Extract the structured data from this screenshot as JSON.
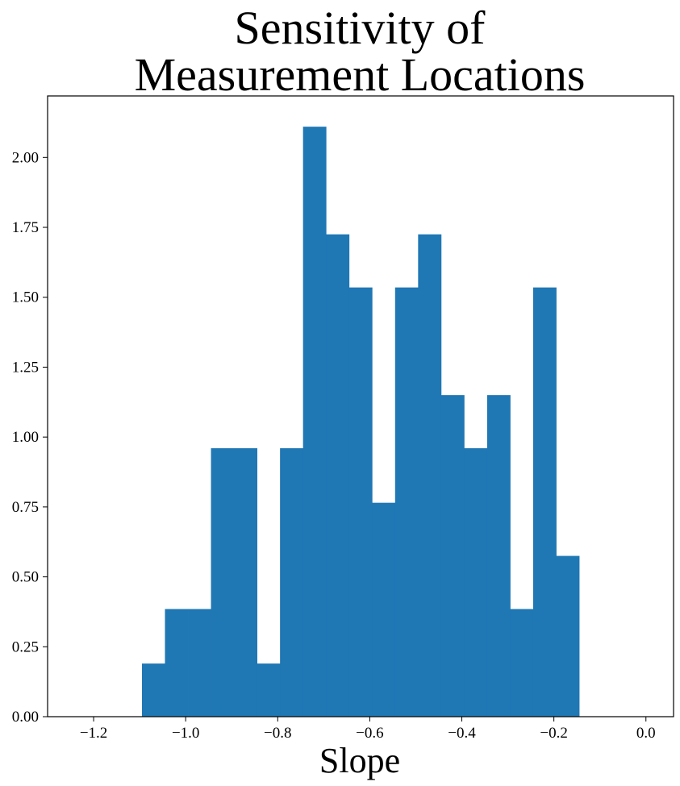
{
  "chart_data": {
    "type": "bar",
    "title_lines": [
      "Sensitivity of",
      "Measurement Locations"
    ],
    "xlabel": "Slope",
    "ylabel": "",
    "bar_color": "#1f77b4",
    "xlim": [
      -1.3,
      0.06
    ],
    "ylim": [
      0,
      2.22
    ],
    "bins": [
      {
        "x0": -1.095,
        "x1": -1.045,
        "value": 0.19
      },
      {
        "x0": -1.045,
        "x1": -0.995,
        "value": 0.385
      },
      {
        "x0": -0.995,
        "x1": -0.945,
        "value": 0.385
      },
      {
        "x0": -0.945,
        "x1": -0.895,
        "value": 0.96
      },
      {
        "x0": -0.895,
        "x1": -0.845,
        "value": 0.96
      },
      {
        "x0": -0.845,
        "x1": -0.795,
        "value": 0.19
      },
      {
        "x0": -0.795,
        "x1": -0.745,
        "value": 0.96
      },
      {
        "x0": -0.745,
        "x1": -0.695,
        "value": 2.11
      },
      {
        "x0": -0.695,
        "x1": -0.645,
        "value": 1.725
      },
      {
        "x0": -0.645,
        "x1": -0.595,
        "value": 1.535
      },
      {
        "x0": -0.595,
        "x1": -0.545,
        "value": 0.765
      },
      {
        "x0": -0.545,
        "x1": -0.495,
        "value": 1.535
      },
      {
        "x0": -0.495,
        "x1": -0.445,
        "value": 1.725
      },
      {
        "x0": -0.445,
        "x1": -0.395,
        "value": 1.15
      },
      {
        "x0": -0.395,
        "x1": -0.345,
        "value": 0.96
      },
      {
        "x0": -0.345,
        "x1": -0.295,
        "value": 1.15
      },
      {
        "x0": -0.295,
        "x1": -0.245,
        "value": 0.385
      },
      {
        "x0": -0.245,
        "x1": -0.195,
        "value": 1.535
      },
      {
        "x0": -0.195,
        "x1": -0.145,
        "value": 0.575
      }
    ],
    "xticks": [
      {
        "value": -1.2,
        "label": "−1.2"
      },
      {
        "value": -1.0,
        "label": "−1.0"
      },
      {
        "value": -0.8,
        "label": "−0.8"
      },
      {
        "value": -0.6,
        "label": "−0.6"
      },
      {
        "value": -0.4,
        "label": "−0.4"
      },
      {
        "value": -0.2,
        "label": "−0.2"
      },
      {
        "value": 0.0,
        "label": "0.0"
      }
    ],
    "yticks": [
      {
        "value": 0.0,
        "label": "0.00"
      },
      {
        "value": 0.25,
        "label": "0.25"
      },
      {
        "value": 0.5,
        "label": "0.50"
      },
      {
        "value": 0.75,
        "label": "0.75"
      },
      {
        "value": 1.0,
        "label": "1.00"
      },
      {
        "value": 1.25,
        "label": "1.25"
      },
      {
        "value": 1.5,
        "label": "1.50"
      },
      {
        "value": 1.75,
        "label": "1.75"
      },
      {
        "value": 2.0,
        "label": "2.00"
      }
    ],
    "grid": false,
    "legend": "none"
  }
}
